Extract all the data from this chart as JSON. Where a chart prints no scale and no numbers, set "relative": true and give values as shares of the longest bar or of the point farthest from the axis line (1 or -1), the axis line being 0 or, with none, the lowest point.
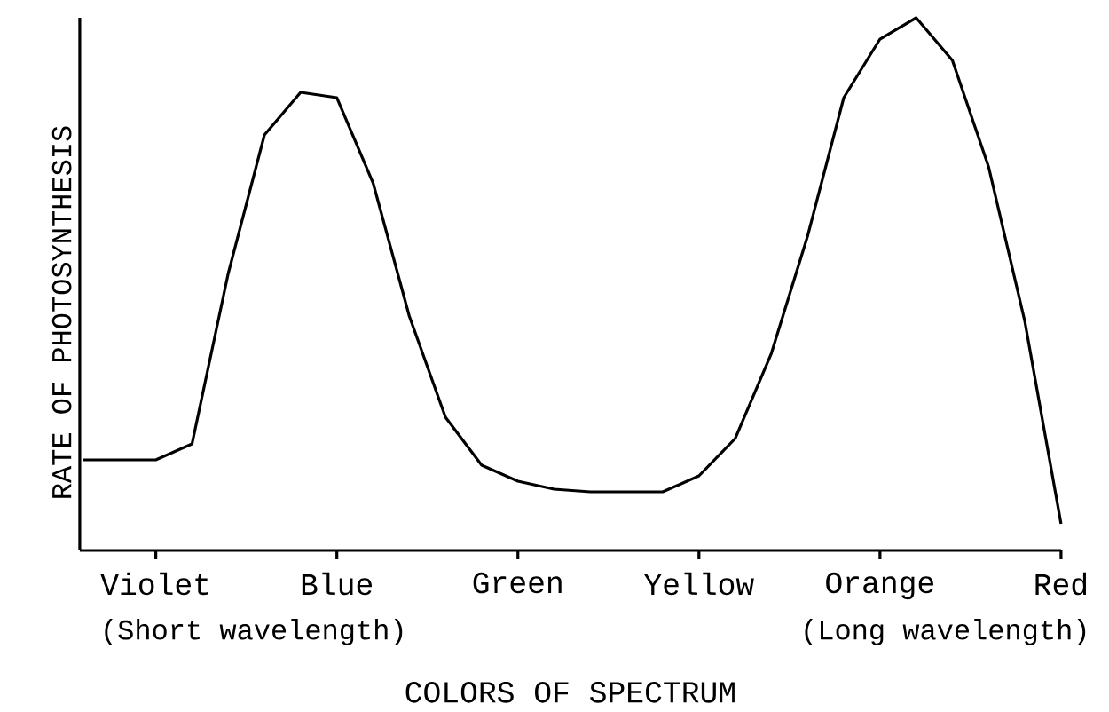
{
  "chart_data": {
    "type": "line",
    "relative": true,
    "xlabel": "COLORS OF SPECTRUM",
    "ylabel": "RATE OF PHOTOSYNTHESIS",
    "annotations": [
      "(Short wavelength)",
      "(Long wavelength)"
    ],
    "categories": [
      null,
      null,
      "Violet",
      null,
      null,
      null,
      null,
      "Blue",
      null,
      null,
      null,
      null,
      "Green",
      null,
      null,
      null,
      null,
      "Yellow",
      null,
      null,
      null,
      null,
      "Orange",
      null,
      null,
      null,
      null,
      "Red"
    ],
    "series": [
      {
        "color": "#000000",
        "values": [
          0.17,
          0.17,
          0.17,
          0.2,
          0.52,
          0.78,
          0.86,
          0.85,
          0.69,
          0.44,
          0.25,
          0.16,
          0.13,
          0.115,
          0.11,
          0.11,
          0.11,
          0.14,
          0.21,
          0.37,
          0.59,
          0.85,
          0.96,
          1.0,
          0.92,
          0.72,
          0.43,
          0.05
        ]
      }
    ],
    "grid": false,
    "marker": "none",
    "line_style": "solid"
  }
}
